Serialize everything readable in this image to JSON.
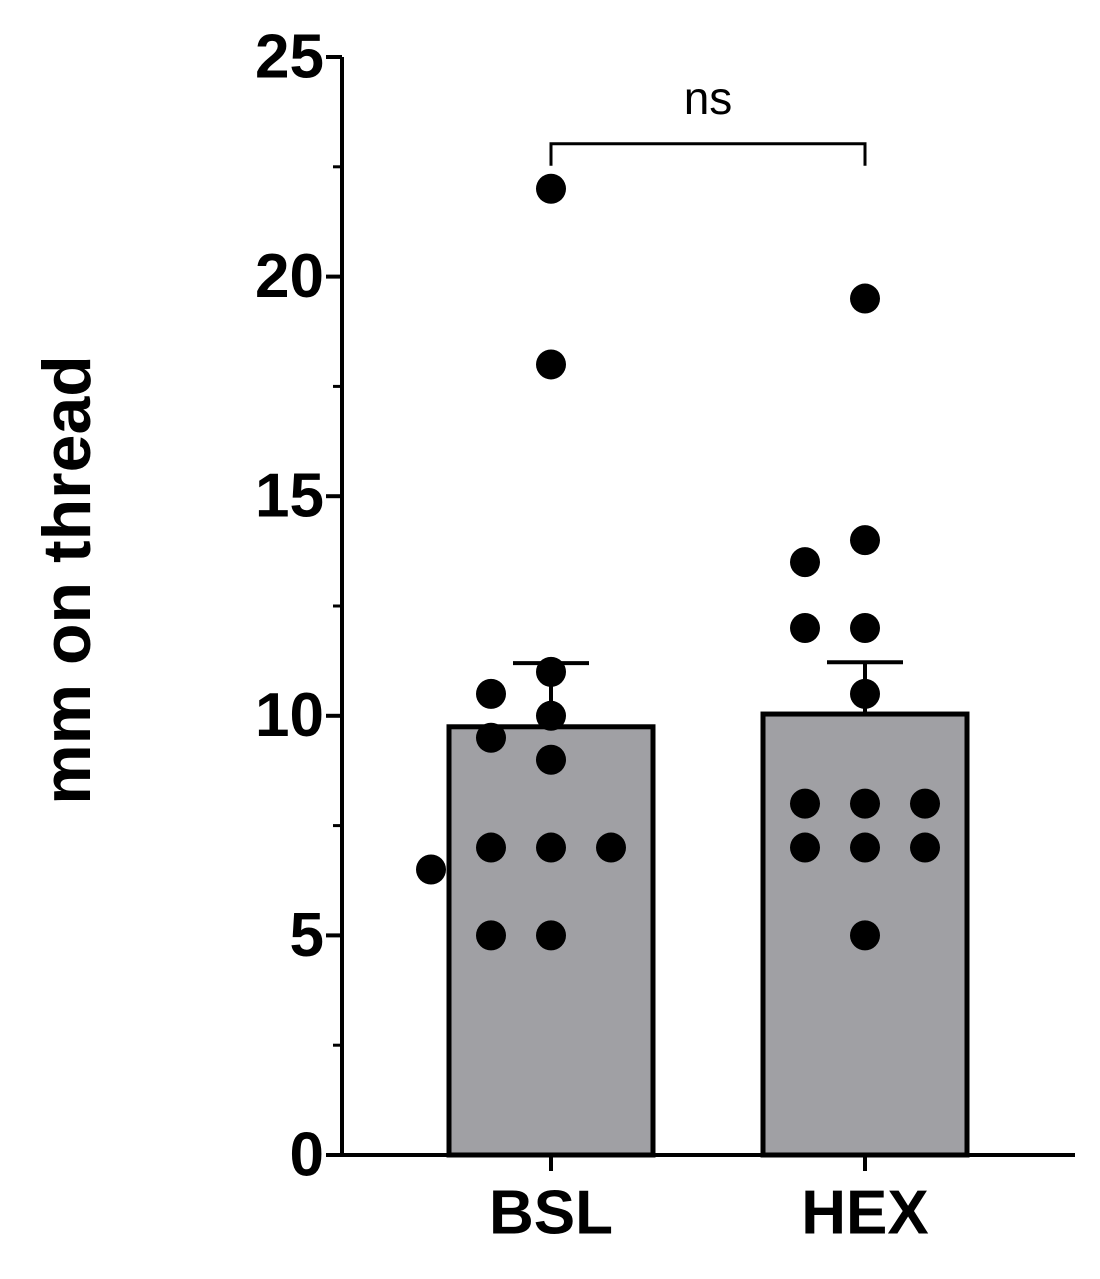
{
  "chart_data": {
    "type": "bar",
    "y_label": "mm on thread",
    "categories": [
      "BSL",
      "HEX"
    ],
    "values": [
      9.75,
      10.04
    ],
    "errors": [
      1.45,
      1.18
    ],
    "points": [
      [
        22,
        18,
        11,
        10.5,
        10,
        9.5,
        9,
        7,
        7,
        7,
        6.5,
        5,
        5
      ],
      [
        19.5,
        14,
        13.5,
        12,
        12,
        10.5,
        8,
        8,
        8,
        7,
        7,
        7,
        5
      ]
    ],
    "color": "#a0a0a4",
    "point_color": "#000000",
    "ylim": [
      0,
      25
    ],
    "yticks": [
      0,
      5,
      10,
      15,
      20,
      25
    ],
    "annotation": "ns"
  }
}
